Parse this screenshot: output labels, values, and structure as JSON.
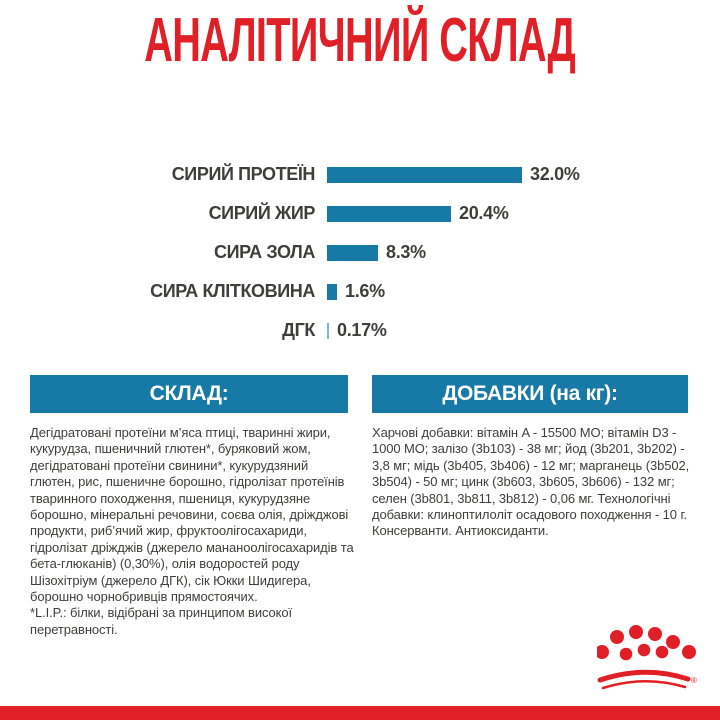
{
  "page": {
    "title": "АНАЛІТИЧНИЙ СКЛАД"
  },
  "colors": {
    "brand_red": "#E01F26",
    "bar_teal": "#1779A6",
    "bar_teal_light": "#7BB6D2",
    "text_dark": "#3E3E3D"
  },
  "chart_data": {
    "type": "bar",
    "orientation": "horizontal",
    "title": "АНАЛІТИЧНИЙ СКЛАД",
    "categories": [
      "СИРИЙ ПРОТЕЇН",
      "СИРИЙ ЖИР",
      "СИРА ЗОЛА",
      "СИРА КЛІТКОВИНА",
      "ДГК"
    ],
    "values": [
      32.0,
      20.4,
      8.3,
      1.6,
      0.17
    ],
    "value_labels": [
      "32.0%",
      "20.4%",
      "8.3%",
      "1.6%",
      "0.17%"
    ],
    "unit": "%",
    "xlim": [
      0,
      32
    ],
    "grid": false,
    "legend": false,
    "bar_color": "#1779A6"
  },
  "sections": {
    "composition": {
      "header": "СКЛАД:",
      "body": "Дегідратовані протеїни м’яса птиці, тваринні жири, кукурудза, пшеничний глютен*, буряковий жом, дегідратовані протеїни свинини*, кукурудзяний глютен, рис, пшеничне борошно, гідролізат протеїнів тваринного походження, пшениця, кукурудзяне борошно, мінеральні речовини, соєва олія, дріжджові продукти, риб’ячий жир, фруктоолігосахариди, гідролізат дріжджів (джерело мананоолігосахаридів та бета-глюканів) (0,30%), олія водоростей роду Шізохітріум (джерело ДГК), сік Юкки Шидигера, борошно чорнобривців прямостоячих.",
      "note": "*L.I.P.: білки, відібрані за принципом високої перетравності."
    },
    "additives": {
      "header": "ДОБАВКИ (на кг):",
      "body": "Харчові добавки: вітамін A - 15500 МО; вітамін D3 - 1000 МО; залізо (3b103) - 38 мг; йод (3b201, 3b202) - 3,8 мг; мідь (3b405, 3b406) - 12 мг; марганець (3b502, 3b504) - 50 мг; цинк (3b603, 3b605, 3b606) - 132 мг; селен (3b801, 3b811, 3b812) - 0,06 мг. Технологічні добавки: клиноптилоліт осадового походження - 10 г. Консерванти. Антиоксиданти."
    }
  },
  "footer": {
    "logo_name": "royal-canin-crown",
    "registered_mark": "®"
  }
}
